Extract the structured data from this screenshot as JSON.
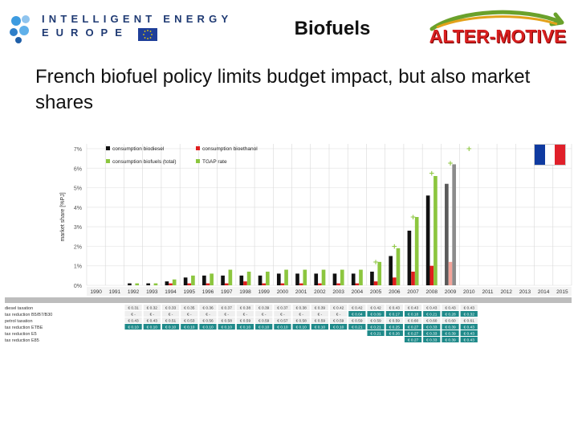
{
  "header": {
    "program_title": "INTELLIGENT ENERGY",
    "program_subtitle": "EUROPE",
    "slide_topic": "Biofuels",
    "brand": "ALTER-MOTIVE"
  },
  "slide": {
    "headline": "French biofuel policy limits budget impact, but also market shares"
  },
  "colors": {
    "diesel": "#111111",
    "ethanol": "#e01e1e",
    "total": "#8cc63f",
    "tgap": "#8cc63f",
    "forecast_total": "#8c8c8c",
    "forecast_ethanol": "#f3a49a",
    "teal": "#1f8a8a",
    "flag_blue": "#0f3aa0",
    "flag_red": "#e0202a"
  },
  "chart_data": {
    "type": "bar",
    "ylabel": "market share [%PJ]",
    "ylim": [
      0,
      7
    ],
    "yticks": [
      "0%",
      "1%",
      "2%",
      "3%",
      "4%",
      "5%",
      "6%",
      "7%"
    ],
    "categories": [
      "1990",
      "1991",
      "1992",
      "1993",
      "1994",
      "1995",
      "1996",
      "1997",
      "1998",
      "1999",
      "2000",
      "2001",
      "2002",
      "2003",
      "2004",
      "2005",
      "2006",
      "2007",
      "2008",
      "2009",
      "2010",
      "2011",
      "2012",
      "2013",
      "2014",
      "2015"
    ],
    "legend": {
      "placement": "top-left",
      "diesel": "consumption biodiesel",
      "ethanol": "consumption bioethanol",
      "total": "consumption biofuels (total)",
      "tgap": "TGAP rate"
    },
    "series": [
      {
        "name": "consumption biodiesel",
        "key": "diesel",
        "values": [
          0,
          0,
          0.1,
          0.1,
          0.2,
          0.4,
          0.5,
          0.5,
          0.5,
          0.5,
          0.6,
          0.6,
          0.6,
          0.6,
          0.6,
          0.7,
          1.5,
          2.8,
          4.6,
          5.2,
          0,
          0,
          0,
          0,
          0,
          0
        ]
      },
      {
        "name": "consumption bioethanol",
        "key": "ethanol",
        "values": [
          0,
          0,
          0,
          0,
          0.1,
          0.1,
          0.1,
          0.1,
          0.2,
          0.1,
          0.1,
          0.1,
          0.1,
          0.1,
          0.1,
          0.2,
          0.4,
          0.7,
          1.0,
          1.2,
          0,
          0,
          0,
          0,
          0,
          0
        ]
      },
      {
        "name": "consumption biofuels (total)",
        "key": "total",
        "values": [
          0,
          0,
          0.1,
          0.1,
          0.3,
          0.5,
          0.6,
          0.8,
          0.7,
          0.7,
          0.8,
          0.8,
          0.8,
          0.8,
          0.8,
          1.2,
          1.9,
          3.5,
          5.6,
          6.2,
          0,
          0,
          0,
          0,
          0,
          0
        ]
      },
      {
        "name": "TGAP rate",
        "key": "tgap",
        "values": [
          null,
          null,
          null,
          null,
          null,
          null,
          null,
          null,
          null,
          null,
          null,
          null,
          null,
          null,
          null,
          1.2,
          2.0,
          3.5,
          5.75,
          6.25,
          7.0,
          null,
          null,
          null,
          null,
          null
        ]
      }
    ],
    "forecast_from": "2009",
    "table": {
      "row_labels": [
        "diesel taxation",
        "tax reduction B5/B7/B30",
        "petrol taxation",
        "tax reduction ETBE",
        "tax reduction E5",
        "tax reduction E85"
      ],
      "rows": [
        [
          "",
          "",
          "€ 0.31",
          "€ 0.32",
          "€ 0.33",
          "€ 0.35",
          "€ 0.36",
          "€ 0.37",
          "€ 0.38",
          "€ 0.39",
          "€ 0.37",
          "€ 0.38",
          "€ 0.39",
          "€ 0.42",
          "€ 0.42",
          "€ 0.42",
          "€ 0.43",
          "€ 0.43",
          "€ 0.43",
          "€ 0.43",
          "€ 0.43",
          "",
          "",
          "",
          "",
          ""
        ],
        [
          "",
          "",
          "€ -",
          "€ -",
          "€ -",
          "€ -",
          "€ -",
          "€ -",
          "€ -",
          "€ -",
          "€ -",
          "€ -",
          "€ -",
          "€ -",
          "€ 0.04",
          "€ 0.09",
          "€ 0.17",
          "€ 0.18",
          "€ 0.21",
          "€ 0.28",
          "€ 0.32",
          "",
          "",
          "",
          "",
          ""
        ],
        [
          "",
          "",
          "€ 0.43",
          "€ 0.43",
          "€ 0.51",
          "€ 0.53",
          "€ 0.56",
          "€ 0.58",
          "€ 0.59",
          "€ 0.59",
          "€ 0.57",
          "€ 0.58",
          "€ 0.59",
          "€ 0.59",
          "€ 0.59",
          "€ 0.59",
          "€ 0.59",
          "€ 0.60",
          "€ 0.60",
          "€ 0.60",
          "€ 0.61",
          "",
          "",
          "",
          "",
          ""
        ],
        [
          "",
          "",
          "€ 0.10",
          "€ 0.10",
          "€ 0.10",
          "€ 0.10",
          "€ 0.10",
          "€ 0.10",
          "€ 0.10",
          "€ 0.10",
          "€ 0.10",
          "€ 0.10",
          "€ 0.10",
          "€ 0.10",
          "€ 0.21",
          "€ 0.21",
          "€ 0.25",
          "€ 0.27",
          "€ 0.33",
          "€ 0.39",
          "€ 0.43",
          "",
          "",
          "",
          "",
          ""
        ],
        [
          "",
          "",
          "",
          "",
          "",
          "",
          "",
          "",
          "",
          "",
          "",
          "",
          "",
          "",
          "",
          "€ 0.21",
          "€ 0.26",
          "€ 0.27",
          "€ 0.33",
          "€ 0.39",
          "€ 0.43",
          "",
          "",
          "",
          "",
          ""
        ],
        [
          "",
          "",
          "",
          "",
          "",
          "",
          "",
          "",
          "",
          "",
          "",
          "",
          "",
          "",
          "",
          "",
          "",
          "€ 0.27",
          "€ 0.33",
          "€ 0.39",
          "€ 0.43",
          "",
          "",
          "",
          "",
          ""
        ]
      ]
    }
  }
}
